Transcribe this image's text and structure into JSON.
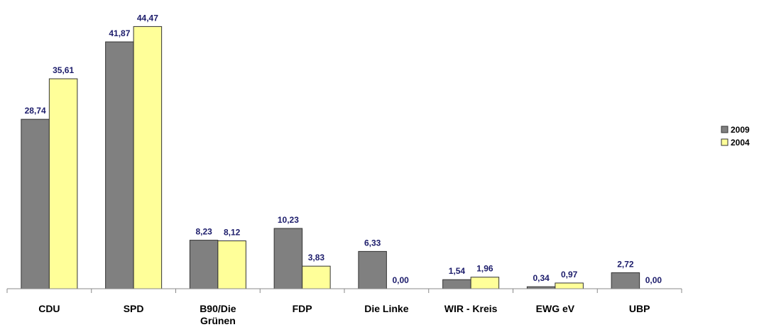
{
  "chart_data": {
    "type": "bar",
    "categories": [
      "CDU",
      "SPD",
      "B90/Die Grünen",
      "FDP",
      "Die Linke",
      "WIR - Kreis",
      "EWG eV",
      "UBP"
    ],
    "series": [
      {
        "name": "2009",
        "color": "#808080",
        "values": [
          28.74,
          41.87,
          8.23,
          10.23,
          6.33,
          1.54,
          0.34,
          2.72
        ],
        "value_labels": [
          "28,74",
          "41,87",
          "8,23",
          "10,23",
          "6,33",
          "1,54",
          "0,34",
          "2,72"
        ]
      },
      {
        "name": "2004",
        "color": "#ffff99",
        "values": [
          35.61,
          44.47,
          8.12,
          3.83,
          0.0,
          1.96,
          0.97,
          0.0
        ],
        "value_labels": [
          "35,61",
          "44,47",
          "8,12",
          "3,83",
          "0,00",
          "1,96",
          "0,97",
          "0,00"
        ]
      }
    ],
    "ylim": [
      0,
      45
    ],
    "legend": "right"
  }
}
